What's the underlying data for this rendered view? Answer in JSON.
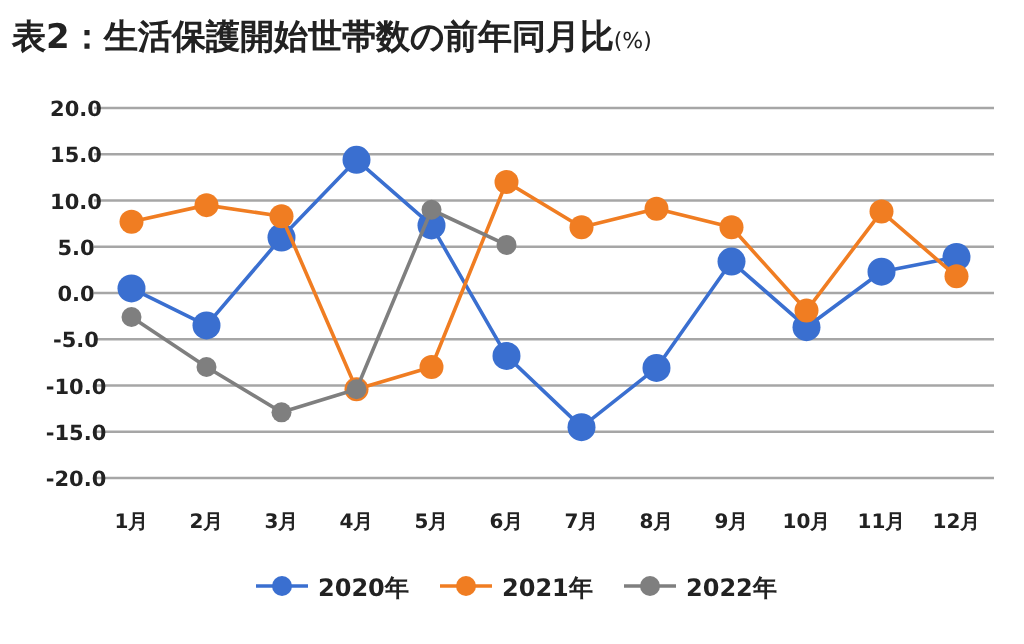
{
  "chart_data": {
    "type": "line",
    "title": "表2：生活保護開始世帯数の前年同月比",
    "subtitle": "(%)",
    "categories": [
      "1月",
      "2月",
      "3月",
      "4月",
      "5月",
      "6月",
      "7月",
      "8月",
      "9月",
      "10月",
      "11月",
      "12月"
    ],
    "series": [
      {
        "name": "2020年",
        "color": "#3a6fd0",
        "values": [
          0.5,
          -3.5,
          6.0,
          14.4,
          7.3,
          -6.8,
          -14.5,
          -8.1,
          3.4,
          -3.7,
          2.3,
          3.9
        ]
      },
      {
        "name": "2021年",
        "color": "#f07d22",
        "values": [
          7.7,
          9.5,
          8.3,
          -10.4,
          -8.0,
          12.0,
          7.1,
          9.1,
          7.1,
          -1.9,
          8.8,
          1.8
        ]
      },
      {
        "name": "2022年",
        "color": "#7f7f7f",
        "values": [
          -2.6,
          -8.0,
          -12.9,
          -10.4,
          9.0,
          5.2,
          null,
          null,
          null,
          null,
          null,
          null
        ]
      }
    ],
    "ylim": [
      -20,
      20
    ],
    "yticks": [
      {
        "value": -20,
        "label": "-20.0"
      },
      {
        "value": -15,
        "label": "-15.0"
      },
      {
        "value": -10,
        "label": "-10.0"
      },
      {
        "value": -5,
        "label": "-5.0"
      },
      {
        "value": 0,
        "label": "0.0"
      },
      {
        "value": 5,
        "label": "5.0"
      },
      {
        "value": 10,
        "label": "10.0"
      },
      {
        "value": 15,
        "label": "15.0"
      },
      {
        "value": 20,
        "label": "20.0"
      }
    ],
    "grid": "y",
    "legend": "bottom",
    "marker": "circle",
    "line_style": "solid"
  }
}
